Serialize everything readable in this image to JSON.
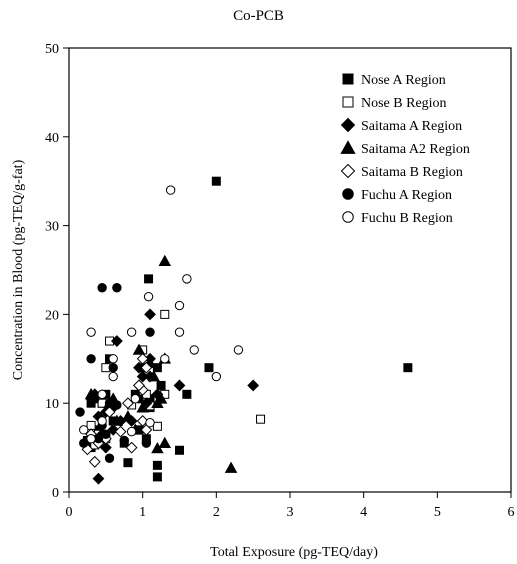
{
  "chart_data": {
    "type": "scatter",
    "title": "Co-PCB",
    "xlabel": "Total Exposure (pg-TEQ/day)",
    "ylabel": "Concentration in Blood (pg-TEQ/g-fat)",
    "xlim": [
      0,
      6
    ],
    "ylim": [
      0,
      50
    ],
    "xticks": [
      0,
      1,
      2,
      3,
      4,
      5,
      6
    ],
    "yticks": [
      0,
      10,
      20,
      30,
      40,
      50
    ],
    "grid": false,
    "legend_position": "top-right",
    "series": [
      {
        "name": "Nose A Region",
        "marker": "square",
        "filled": true,
        "points": [
          [
            2.0,
            35
          ],
          [
            4.6,
            14
          ],
          [
            1.08,
            24
          ],
          [
            1.9,
            14
          ],
          [
            1.6,
            11
          ],
          [
            1.5,
            4.7
          ],
          [
            1.2,
            3
          ],
          [
            1.2,
            1.7
          ],
          [
            0.8,
            3.3
          ],
          [
            0.55,
            15
          ],
          [
            0.5,
            11
          ],
          [
            0.45,
            10
          ],
          [
            0.35,
            10.5
          ],
          [
            0.3,
            10
          ],
          [
            0.4,
            7
          ],
          [
            0.45,
            6.5
          ],
          [
            0.35,
            5.5
          ],
          [
            0.25,
            5.8
          ],
          [
            0.3,
            5
          ],
          [
            0.55,
            9.5
          ],
          [
            0.6,
            8
          ],
          [
            0.9,
            11
          ],
          [
            1.0,
            14
          ],
          [
            1.1,
            9.5
          ],
          [
            1.2,
            14
          ],
          [
            1.25,
            12
          ],
          [
            0.95,
            7
          ],
          [
            1.05,
            6
          ],
          [
            0.75,
            5.5
          ],
          [
            1.1,
            10.5
          ]
        ]
      },
      {
        "name": "Nose B Region",
        "marker": "square",
        "filled": false,
        "points": [
          [
            2.6,
            8.2
          ],
          [
            1.3,
            20
          ],
          [
            1.2,
            7.4
          ],
          [
            0.55,
            17
          ],
          [
            0.5,
            14
          ],
          [
            0.85,
            9.8
          ],
          [
            1.0,
            16
          ],
          [
            1.05,
            11
          ],
          [
            1.1,
            9.7
          ],
          [
            1.3,
            11
          ],
          [
            0.45,
            10
          ],
          [
            0.4,
            6.5
          ],
          [
            0.3,
            7.5
          ],
          [
            0.35,
            5.3
          ],
          [
            0.5,
            6
          ]
        ]
      },
      {
        "name": "Saitama A Region",
        "marker": "diamond",
        "filled": true,
        "points": [
          [
            2.5,
            12
          ],
          [
            1.5,
            12
          ],
          [
            1.1,
            20
          ],
          [
            1.1,
            15
          ],
          [
            0.95,
            14
          ],
          [
            1.0,
            13
          ],
          [
            0.95,
            12
          ],
          [
            1.05,
            10
          ],
          [
            0.65,
            17
          ],
          [
            0.6,
            9.5
          ],
          [
            0.7,
            8
          ],
          [
            0.5,
            9
          ],
          [
            0.4,
            8.5
          ],
          [
            0.35,
            11
          ],
          [
            0.3,
            10.5
          ],
          [
            0.45,
            6.5
          ],
          [
            0.4,
            1.5
          ],
          [
            0.5,
            5
          ],
          [
            0.6,
            7
          ],
          [
            1.1,
            13
          ],
          [
            1.2,
            11
          ],
          [
            0.85,
            8
          ]
        ]
      },
      {
        "name": "Saitama A2 Region",
        "marker": "triangle",
        "filled": true,
        "points": [
          [
            1.3,
            26
          ],
          [
            2.2,
            2.7
          ],
          [
            1.3,
            15
          ],
          [
            1.1,
            14.5
          ],
          [
            0.95,
            16
          ],
          [
            1.15,
            13
          ],
          [
            1.25,
            10.5
          ],
          [
            1.2,
            10
          ],
          [
            1.0,
            9.5
          ],
          [
            1.3,
            5.5
          ],
          [
            1.2,
            4.9
          ],
          [
            0.9,
            7
          ],
          [
            0.8,
            8.5
          ],
          [
            0.65,
            8
          ],
          [
            0.3,
            11
          ],
          [
            0.55,
            10
          ],
          [
            0.6,
            10.5
          ]
        ]
      },
      {
        "name": "Saitama B Region",
        "marker": "diamond",
        "filled": false,
        "points": [
          [
            1.0,
            15
          ],
          [
            1.05,
            14
          ],
          [
            1.0,
            11.5
          ],
          [
            0.95,
            12
          ],
          [
            1.0,
            8
          ],
          [
            0.85,
            5
          ],
          [
            0.7,
            6.8
          ],
          [
            0.5,
            6
          ],
          [
            0.4,
            5.5
          ],
          [
            0.35,
            3.4
          ],
          [
            0.25,
            4.8
          ],
          [
            0.3,
            6.5
          ],
          [
            0.55,
            9
          ],
          [
            0.8,
            10
          ],
          [
            1.05,
            7
          ]
        ]
      },
      {
        "name": "Fuchu A Region",
        "marker": "circle",
        "filled": true,
        "points": [
          [
            0.45,
            23
          ],
          [
            0.65,
            23
          ],
          [
            1.1,
            18
          ],
          [
            0.3,
            15
          ],
          [
            0.6,
            14
          ],
          [
            0.55,
            10
          ],
          [
            0.35,
            10.5
          ],
          [
            0.15,
            9
          ],
          [
            0.5,
            6.5
          ],
          [
            0.4,
            6
          ],
          [
            0.2,
            5.5
          ],
          [
            0.55,
            3.8
          ],
          [
            0.75,
            5.8
          ],
          [
            1.05,
            5.5
          ],
          [
            0.45,
            7.5
          ],
          [
            0.25,
            5.8
          ],
          [
            0.95,
            10.5
          ],
          [
            0.65,
            9.8
          ]
        ]
      },
      {
        "name": "Fuchu B Region",
        "marker": "circle",
        "filled": false,
        "points": [
          [
            1.38,
            34
          ],
          [
            1.6,
            24
          ],
          [
            1.08,
            22
          ],
          [
            1.5,
            21
          ],
          [
            0.3,
            18
          ],
          [
            0.85,
            18
          ],
          [
            1.5,
            18
          ],
          [
            2.3,
            16
          ],
          [
            1.7,
            16
          ],
          [
            0.6,
            15
          ],
          [
            1.3,
            15
          ],
          [
            2.0,
            13
          ],
          [
            0.45,
            11
          ],
          [
            0.9,
            10.5
          ],
          [
            0.6,
            13
          ],
          [
            0.2,
            7
          ],
          [
            0.3,
            6
          ],
          [
            0.45,
            8
          ],
          [
            1.1,
            7.8
          ],
          [
            0.85,
            6.8
          ]
        ]
      }
    ]
  }
}
